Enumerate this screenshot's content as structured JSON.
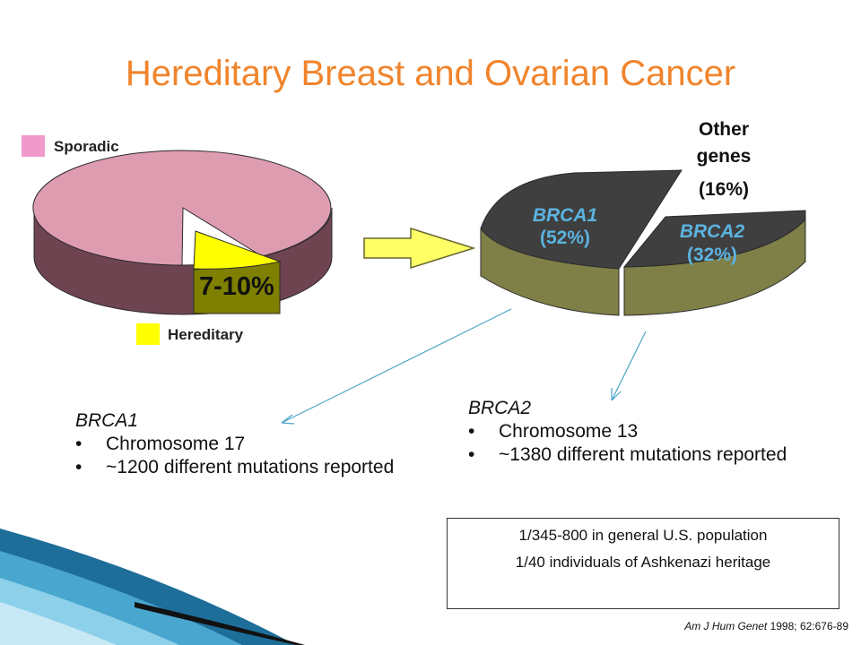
{
  "title": "Hereditary Breast and Ovarian Cancer",
  "chart_data": [
    {
      "type": "pie",
      "legend": [
        {
          "label": "Sporadic",
          "color": "#F09ACC"
        },
        {
          "label": "Hereditary",
          "color": "#FFFF00"
        }
      ],
      "slices": [
        {
          "name": "Sporadic",
          "color": "#DE9CB0"
        },
        {
          "name": "Hereditary",
          "label": "7-10%",
          "value_range": [
            7,
            10
          ],
          "color": "#FFFF00"
        }
      ]
    },
    {
      "type": "pie",
      "slices": [
        {
          "name": "BRCA1",
          "pct_label": "(52%)",
          "value": 52,
          "color": "#3F3F3F"
        },
        {
          "name": "BRCA2",
          "pct_label": "(32%)",
          "value": 32,
          "color": "#3F3F3F"
        },
        {
          "name": "Other genes",
          "pct_label": "(16%)",
          "value": 16,
          "color": "#FFFFFF"
        }
      ],
      "side_color": "#7F7F48"
    }
  ],
  "brca1_info": {
    "gene": "BRCA1",
    "bullets": [
      "Chromosome 17",
      "~1200 different mutations reported"
    ]
  },
  "brca2_info": {
    "gene": "BRCA2",
    "bullets": [
      "Chromosome 13",
      "~1380 different mutations reported"
    ]
  },
  "prevalence": {
    "line1": "1/345-800 in general U.S. population",
    "line2": "1/40 individuals of Ashkenazi heritage"
  },
  "citation": {
    "journal": "Am J Hum Genet",
    "details": " 1998; 62:676-89"
  }
}
